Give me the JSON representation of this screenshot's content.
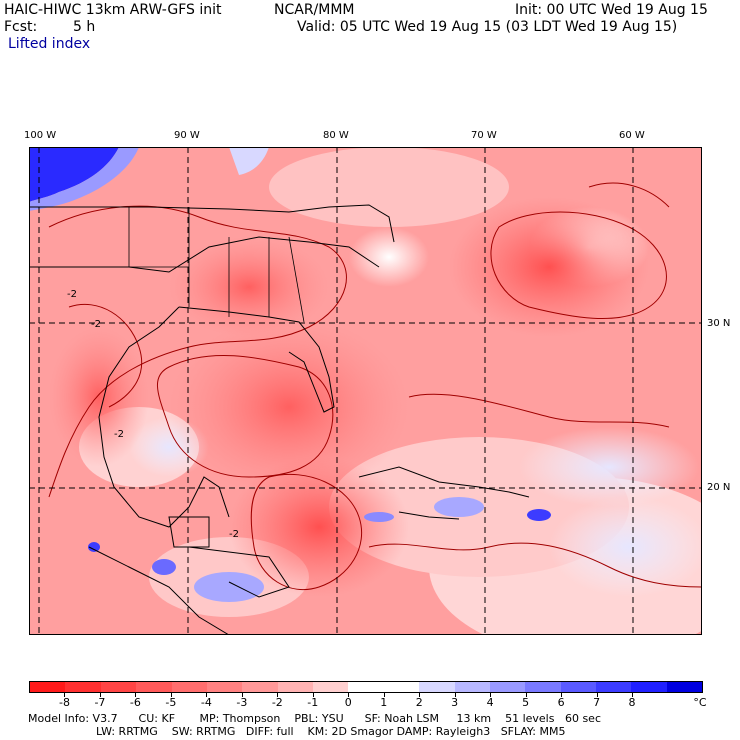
{
  "header": {
    "model": "HAIC-HIWC 13km ARW-GFS init",
    "org": "NCAR/MMM",
    "init": "Init: 00 UTC Wed 19 Aug 15",
    "fcst_label": "Fcst:",
    "fcst_value": "5 h",
    "valid": "Valid: 05 UTC Wed 19 Aug 15 (03 LDT Wed 19 Aug 15)",
    "field": "Lifted index"
  },
  "map": {
    "lon_labels": [
      "100 W",
      "90 W",
      "80 W",
      "70 W",
      "60 W"
    ],
    "lat_labels": [
      "30 N",
      "20 N"
    ],
    "contour_label": "-2"
  },
  "colorbar": {
    "labels": [
      "-8",
      "-7",
      "-6",
      "-5",
      "-4",
      "-3",
      "-2",
      "-1",
      "0",
      "1",
      "2",
      "3",
      "4",
      "5",
      "6",
      "7",
      "8"
    ],
    "unit": "°C",
    "colors": [
      "#ff1a1a",
      "#ff3030",
      "#ff4545",
      "#ff5a5a",
      "#ff6e6e",
      "#ff8282",
      "#ff9999",
      "#ffb3b3",
      "#ffd0d0",
      "#ffffff",
      "#ffffff",
      "#d8d8ff",
      "#b8b8ff",
      "#9a9aff",
      "#7a7aff",
      "#5a5aff",
      "#3c3cff",
      "#2020ff",
      "#0000e0"
    ]
  },
  "footer": {
    "line1": "Model Info: V3.7      CU: KF       MP: Thompson    PBL: YSU      SF: Noah LSM     13 km    51 levels   60 sec",
    "line2": "LW: RRTMG    SW: RRTMG   DIFF: full    KM: 2D Smagor DAMP: Rayleigh3   SFLAY: MM5"
  }
}
